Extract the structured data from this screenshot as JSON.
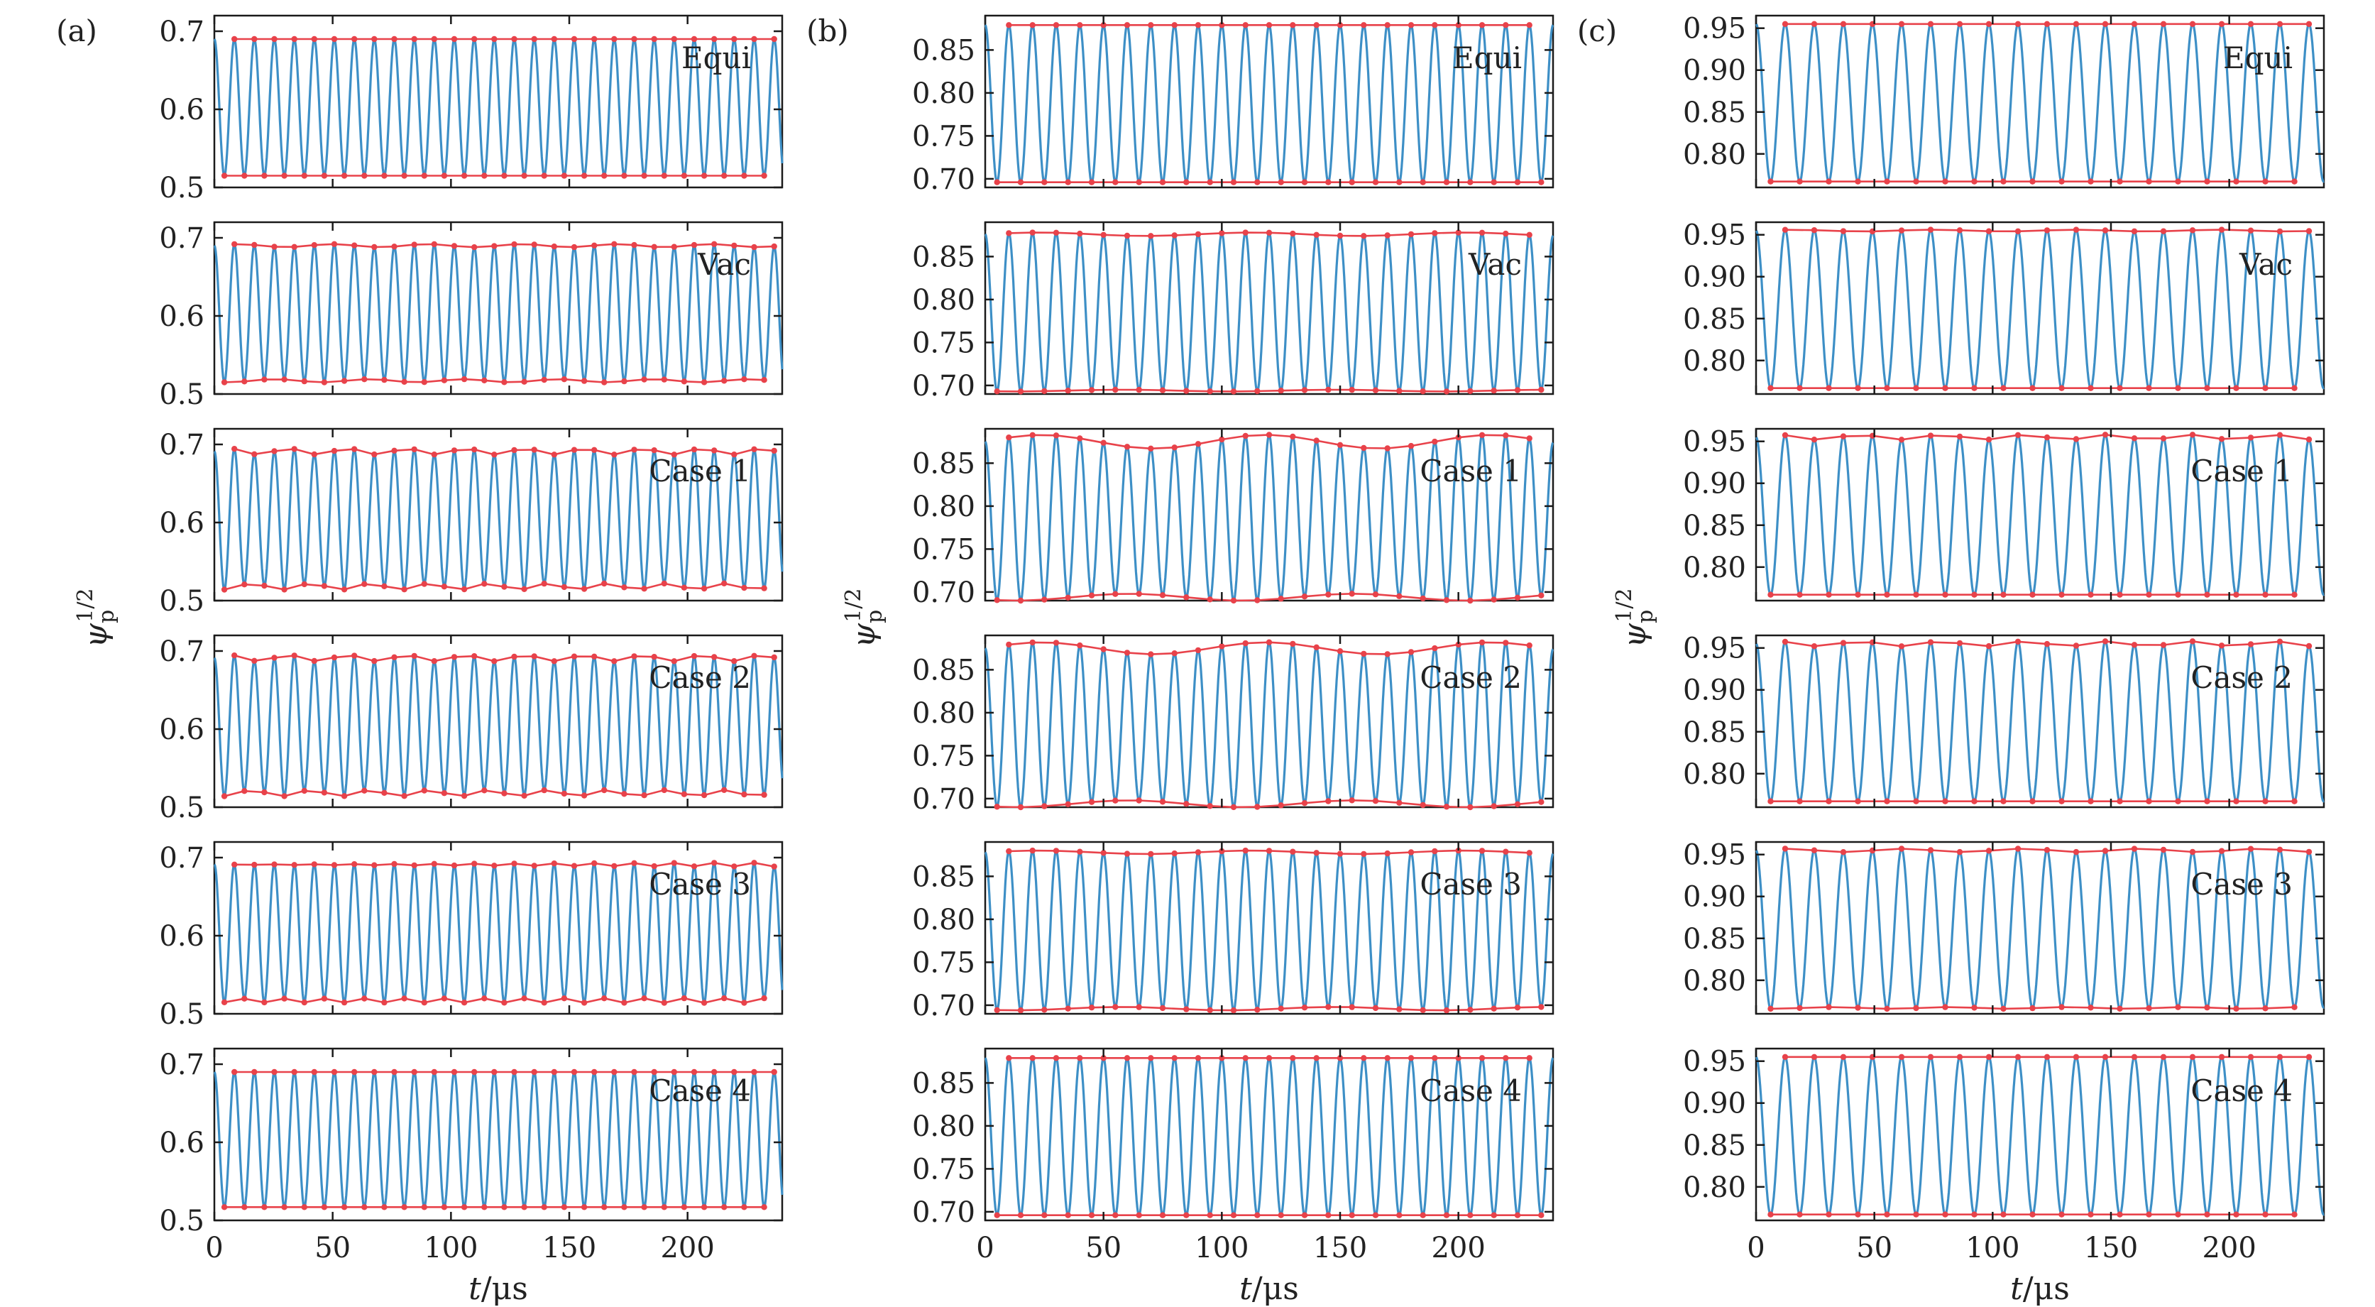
{
  "colors": {
    "oscillation": "#3d8fc6",
    "envelope": "#e8424a",
    "frame": "#1a1a1a"
  },
  "chart_data": [
    {
      "column": "(a)",
      "type": "line",
      "xlabel": "t/μs",
      "ylabel": "ψp^1/2",
      "xlim": [
        0,
        240
      ],
      "x_ticks": [
        "0",
        "50",
        "100",
        "150",
        "200"
      ],
      "ylim": [
        0.5,
        0.72
      ],
      "y_ticks": [
        "0.5",
        "0.6",
        "0.7"
      ],
      "period_us": 8.45,
      "panels": [
        {
          "label": "Equi",
          "max": 0.69,
          "min": 0.515,
          "ripple_max": 0.0,
          "ripple_min": 0.0,
          "ripple_period": 50
        },
        {
          "label": "Vac",
          "max": 0.69,
          "min": 0.517,
          "ripple_max": 0.002,
          "ripple_min": 0.002,
          "ripple_period": 40
        },
        {
          "label": "Case 1",
          "max": 0.691,
          "min": 0.518,
          "ripple_max": 0.004,
          "ripple_min": 0.004,
          "ripple_period": 25
        },
        {
          "label": "Case 2",
          "max": 0.691,
          "min": 0.518,
          "ripple_max": 0.004,
          "ripple_min": 0.004,
          "ripple_period": 25
        },
        {
          "label": "Case 3",
          "max": 0.691,
          "min": 0.517,
          "ripple_max": 0.005,
          "ripple_min": 0.003,
          "ripple_period": 17
        },
        {
          "label": "Case 4",
          "max": 0.69,
          "min": 0.517,
          "ripple_max": 0.0,
          "ripple_min": 0.0,
          "ripple_period": 50
        }
      ]
    },
    {
      "column": "(b)",
      "type": "line",
      "xlabel": "t/μs",
      "ylabel": "ψp^1/2",
      "xlim": [
        0,
        240
      ],
      "x_ticks": [
        "0",
        "50",
        "100",
        "150",
        "200"
      ],
      "ylim": [
        0.69,
        0.89
      ],
      "y_ticks": [
        "0.70",
        "0.75",
        "0.80",
        "0.85"
      ],
      "period_us": 10.0,
      "panels": [
        {
          "label": "Equi",
          "max": 0.879,
          "min": 0.696,
          "ripple_max": 0.0,
          "ripple_min": 0.0,
          "ripple_period": 50
        },
        {
          "label": "Vac",
          "max": 0.876,
          "min": 0.694,
          "ripple_max": 0.002,
          "ripple_min": 0.001,
          "ripple_period": 90
        },
        {
          "label": "Case 1",
          "max": 0.875,
          "min": 0.694,
          "ripple_max": 0.008,
          "ripple_min": 0.004,
          "ripple_period": 95
        },
        {
          "label": "Case 2",
          "max": 0.875,
          "min": 0.694,
          "ripple_max": 0.007,
          "ripple_min": 0.004,
          "ripple_period": 95
        },
        {
          "label": "Case 3",
          "max": 0.878,
          "min": 0.696,
          "ripple_max": 0.002,
          "ripple_min": 0.002,
          "ripple_period": 90
        },
        {
          "label": "Case 4",
          "max": 0.879,
          "min": 0.696,
          "ripple_max": 0.0,
          "ripple_min": 0.0,
          "ripple_period": 50
        }
      ]
    },
    {
      "column": "(c)",
      "type": "line",
      "xlabel": "t/μs",
      "ylabel": "ψp^1/2",
      "xlim": [
        0,
        240
      ],
      "x_ticks": [
        "0",
        "50",
        "100",
        "150",
        "200"
      ],
      "ylim": [
        0.76,
        0.965
      ],
      "y_ticks": [
        "0.80",
        "0.85",
        "0.90",
        "0.95"
      ],
      "period_us": 12.3,
      "panels": [
        {
          "label": "Equi",
          "max": 0.955,
          "min": 0.767,
          "ripple_max": 0.0,
          "ripple_min": 0.0,
          "ripple_period": 50
        },
        {
          "label": "Vac",
          "max": 0.955,
          "min": 0.767,
          "ripple_max": 0.001,
          "ripple_min": 0.0,
          "ripple_period": 60
        },
        {
          "label": "Case 1",
          "max": 0.955,
          "min": 0.767,
          "ripple_max": 0.003,
          "ripple_min": 0.0,
          "ripple_period": 35
        },
        {
          "label": "Case 2",
          "max": 0.955,
          "min": 0.767,
          "ripple_max": 0.003,
          "ripple_min": 0.0,
          "ripple_period": 35
        },
        {
          "label": "Case 3",
          "max": 0.955,
          "min": 0.767,
          "ripple_max": 0.002,
          "ripple_min": 0.001,
          "ripple_period": 50
        },
        {
          "label": "Case 4",
          "max": 0.955,
          "min": 0.767,
          "ripple_max": 0.0,
          "ripple_min": 0.0,
          "ripple_period": 50
        }
      ]
    }
  ]
}
